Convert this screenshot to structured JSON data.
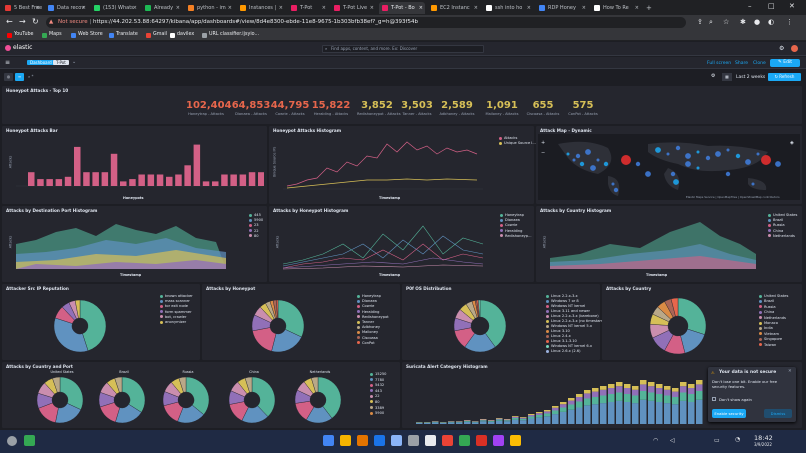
{
  "browser": {
    "tabs": [
      {
        "label": "5 Best Free",
        "color": "#e53935"
      },
      {
        "label": "Data recov",
        "color": "#4285f4"
      },
      {
        "label": "(153) Whats",
        "color": "#25d366"
      },
      {
        "label": "Already",
        "color": "#1db954"
      },
      {
        "label": "python - im",
        "color": "#f48024"
      },
      {
        "label": "Instances |",
        "color": "#ff9900"
      },
      {
        "label": "T-Pot",
        "color": "#e91e63"
      },
      {
        "label": "T-Pot Live",
        "color": "#e91e63"
      },
      {
        "label": "T-Pot - Bo",
        "color": "#e91e63"
      },
      {
        "label": "EC2 Instanc",
        "color": "#ff9900"
      },
      {
        "label": "ssh into ho",
        "color": "#ffffff"
      },
      {
        "label": "RDP Honey",
        "color": "#4285f4"
      },
      {
        "label": "How To Re",
        "color": "#ffffff"
      }
    ],
    "url_warning": "Not secure",
    "url": "https://44.202.53.88:64297/kibana/app/dashboards#/view/8d4e8300-ebde-11e8-9675-1b303bfb38ef?_g=h@393f54b",
    "bookmarks": [
      {
        "label": "YouTube",
        "color": "#ff0000"
      },
      {
        "label": "Maps",
        "color": "#34a853"
      },
      {
        "label": "Web Store",
        "color": "#4285f4"
      },
      {
        "label": "Translate",
        "color": "#4285f4"
      },
      {
        "label": "Gmail",
        "color": "#ea4335"
      },
      {
        "label": "davilex",
        "color": "#ffffff"
      },
      {
        "label": "URL classifier.ijsyio...",
        "color": "#9aa0a6"
      }
    ]
  },
  "kibana": {
    "logo_text": "elastic",
    "search_placeholder": "Find apps, content, and more. Ex: Discover",
    "breadcrumb_dashboard": "Dashboard",
    "breadcrumb_current": "T-Pot",
    "full_screen": "Full screen",
    "share": "Share",
    "clone": "Clone",
    "edit": "Edit",
    "time_range": "Last 2 weeks",
    "refresh": "Refresh"
  },
  "panels": {
    "top10_title": "Honeypot Attacks - Top 10",
    "bar_title": "Honeypot Attacks Bar",
    "histogram_title": "Honeypot Attacks Histogram",
    "map_title": "Attack Map - Dynamic",
    "dest_port_title": "Attacks by Destination Port Histogram",
    "by_honeypot_hist_title": "Attacks by Honeypot Histogram",
    "by_country_hist_title": "Attacks by Country Histogram",
    "src_ip_rep_title": "Attacker Src IP Reputation",
    "by_honeypot_title": "Attacks by Honeypot",
    "p0f_title": "P0f OS Distribution",
    "by_country_title": "Attacks by Country",
    "country_port_title": "Attacks by Country and Port",
    "suricata_title": "Suricata Alert Category Histogram",
    "bar_xlabel": "Honeypots",
    "bar_ylabel": "Attacks",
    "hist_xlabel": "Timestamp",
    "hist_ylabel": "Unique Source IPs",
    "map_attribution": "Elastic Maps Service | OpenMapTiles | OpenStreetMap contributors"
  },
  "metrics": [
    {
      "value": "102,404",
      "label": "Honeytrap - Attacks",
      "color": "#e7664c"
    },
    {
      "value": "64,853",
      "label": "Dionaea - Attacks",
      "color": "#e7664c"
    },
    {
      "value": "44,795",
      "label": "Cowrie - Attacks",
      "color": "#e7664c"
    },
    {
      "value": "15,822",
      "label": "Heralding - Attacks",
      "color": "#e7664c"
    },
    {
      "value": "3,852",
      "label": "Redishoneypot - Attacks",
      "color": "#d6bf57"
    },
    {
      "value": "3,503",
      "label": "Tanner - Attacks",
      "color": "#d6bf57"
    },
    {
      "value": "2,589",
      "label": "Adbhoney - Attacks",
      "color": "#d6bf57"
    },
    {
      "value": "1,091",
      "label": "Mailoney - Attacks",
      "color": "#d6bf57"
    },
    {
      "value": "655",
      "label": "Ciscoasa - Attacks",
      "color": "#d6bf57"
    },
    {
      "value": "575",
      "label": "ConPot - Attacks",
      "color": "#d6bf57"
    }
  ],
  "legends": {
    "histogram": [
      "Attacks",
      "Unique Source I..."
    ],
    "dest_port": [
      "445",
      "5900",
      "23",
      "22",
      "80"
    ],
    "by_honeypot": [
      "Honeytrap",
      "Dionaea",
      "Cowrie",
      "Heralding",
      "Redishoneyp..."
    ],
    "by_country": [
      "United States",
      "Brazil",
      "Russia",
      "China",
      "Netherlands"
    ],
    "src_ip_rep": [
      "known attacker",
      "mass scanner",
      "tor exit node",
      "form spammer",
      "bot, crawler",
      "anonymizer"
    ],
    "honeypot_pie": [
      "Honeytrap",
      "Dionaea",
      "Cowrie",
      "Heralding",
      "Redishoneypot",
      "Tanner",
      "Adbhoney",
      "Mailoney",
      "Ciscoasa",
      "ConPot"
    ],
    "p0f": [
      "Linux 2.2.x-3.x",
      "Windows 7 or 8",
      "Windows NT kernel",
      "Linux 3.11 and newer",
      "Linux 2.2.x-3.x (barebone)",
      "Linux 2.2.x-3.x (no timestamps)",
      "Windows NT kernel 5.x",
      "Linux 3.10",
      "Linux 2.4.x",
      "Linux 3.1-3.10",
      "Windows NT kernel 6.x",
      "Linux 2.6.x (2.6)"
    ],
    "country_pie": [
      "United States",
      "Brazil",
      "Russia",
      "China",
      "Netherlands",
      "Monaco",
      "India",
      "Vietnam",
      "Singapore",
      "Taiwan"
    ],
    "ports": [
      "15250",
      "7780",
      "5432",
      "443",
      "22",
      "80",
      "3389",
      "5900"
    ]
  },
  "country_port_labels": [
    "United States",
    "Brazil",
    "Russia",
    "China",
    "Netherlands"
  ],
  "toast": {
    "title": "Your data is not secure",
    "body": "Don't lose one bit. Enable our free security features.",
    "checkbox": "Don't show again",
    "primary": "Enable security",
    "secondary": "Dismiss"
  },
  "taskbar": {
    "time": "18:42",
    "date": "3/9/2022"
  }
}
